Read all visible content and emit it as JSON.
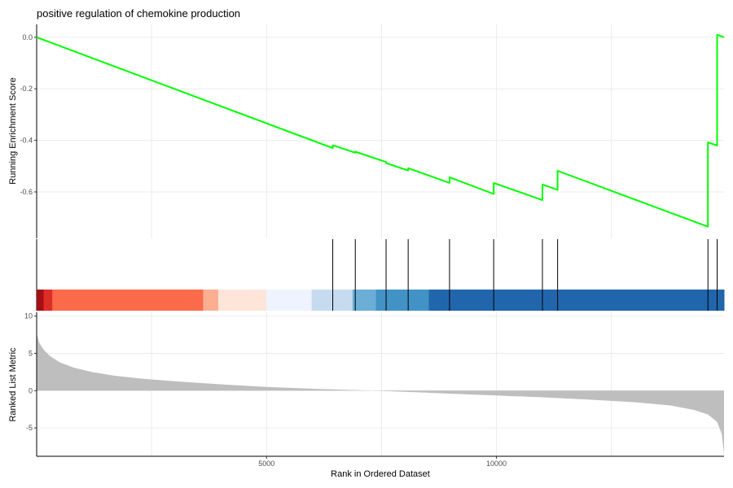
{
  "chart_data": {
    "type": "line",
    "title": "positive regulation of chemokine production",
    "xlabel": "Rank in Ordered Dataset",
    "x_tick_labels": [
      "5000",
      "10000"
    ],
    "xlim": [
      0,
      14950
    ],
    "grid": true,
    "colors": {
      "line": "#00ff00",
      "hit": "#000000",
      "metric_fill": "#bebebe",
      "grid": "#ebebeb",
      "axis": "#000000"
    },
    "panels": [
      {
        "name": "running-enrichment",
        "type": "line",
        "ylabel": "Running Enrichment Score",
        "ylim": [
          -0.78,
          0.05
        ],
        "y_ticks": [
          0.0,
          -0.2,
          -0.4,
          -0.6
        ],
        "y_tick_labels": [
          "0.0",
          "-0.2",
          "-0.4",
          "-0.6"
        ],
        "points": [
          [
            0,
            0.0
          ],
          [
            6440,
            -0.43
          ],
          [
            6440,
            -0.419
          ],
          [
            6930,
            -0.448
          ],
          [
            6930,
            -0.444
          ],
          [
            7600,
            -0.484
          ],
          [
            7600,
            -0.488
          ],
          [
            8080,
            -0.517
          ],
          [
            8080,
            -0.508
          ],
          [
            8980,
            -0.565
          ],
          [
            8980,
            -0.543
          ],
          [
            9940,
            -0.608
          ],
          [
            9940,
            -0.565
          ],
          [
            11000,
            -0.632
          ],
          [
            11000,
            -0.571
          ],
          [
            11330,
            -0.592
          ],
          [
            11330,
            -0.518
          ],
          [
            14600,
            -0.735
          ],
          [
            14600,
            -0.408
          ],
          [
            14800,
            -0.42
          ],
          [
            14800,
            0.01
          ],
          [
            14950,
            0.0
          ]
        ]
      },
      {
        "name": "gene-hits",
        "type": "hits",
        "hit_ranks": [
          6440,
          6930,
          7600,
          8080,
          8980,
          9940,
          11000,
          11330,
          14600,
          14800
        ],
        "color_bands": [
          {
            "from": 0,
            "to": 150,
            "color": "#a50f15"
          },
          {
            "from": 150,
            "to": 340,
            "color": "#de2d26"
          },
          {
            "from": 340,
            "to": 3620,
            "color": "#fb6a4a"
          },
          {
            "from": 3620,
            "to": 3950,
            "color": "#fcae91"
          },
          {
            "from": 3950,
            "to": 5000,
            "color": "#fee5d9"
          },
          {
            "from": 5000,
            "to": 5980,
            "color": "#eff3ff"
          },
          {
            "from": 5980,
            "to": 6870,
            "color": "#c6dbef"
          },
          {
            "from": 6870,
            "to": 7380,
            "color": "#6baed6"
          },
          {
            "from": 7380,
            "to": 8530,
            "color": "#4292c6"
          },
          {
            "from": 8530,
            "to": 14950,
            "color": "#2166ac"
          }
        ]
      },
      {
        "name": "ranked-list-metric",
        "type": "area",
        "ylabel": "Ranked List Metric",
        "ylim": [
          -8.8,
          10.5
        ],
        "y_ticks": [
          10,
          5,
          0,
          -5
        ],
        "y_tick_labels": [
          "10",
          "5",
          "0",
          "-5"
        ],
        "points": [
          [
            0,
            7.7
          ],
          [
            50,
            6.5
          ],
          [
            150,
            5.5
          ],
          [
            300,
            4.6
          ],
          [
            500,
            3.8
          ],
          [
            800,
            3.1
          ],
          [
            1200,
            2.5
          ],
          [
            1700,
            2.0
          ],
          [
            2300,
            1.6
          ],
          [
            3000,
            1.25
          ],
          [
            4000,
            0.85
          ],
          [
            5000,
            0.5
          ],
          [
            6000,
            0.25
          ],
          [
            6800,
            0.1
          ],
          [
            7300,
            0.0
          ],
          [
            8000,
            -0.15
          ],
          [
            9000,
            -0.4
          ],
          [
            10000,
            -0.65
          ],
          [
            11000,
            -0.9
          ],
          [
            12000,
            -1.2
          ],
          [
            13000,
            -1.55
          ],
          [
            13800,
            -2.0
          ],
          [
            14300,
            -2.6
          ],
          [
            14600,
            -3.2
          ],
          [
            14800,
            -4.2
          ],
          [
            14900,
            -5.8
          ],
          [
            14950,
            -8.5
          ]
        ]
      }
    ]
  }
}
